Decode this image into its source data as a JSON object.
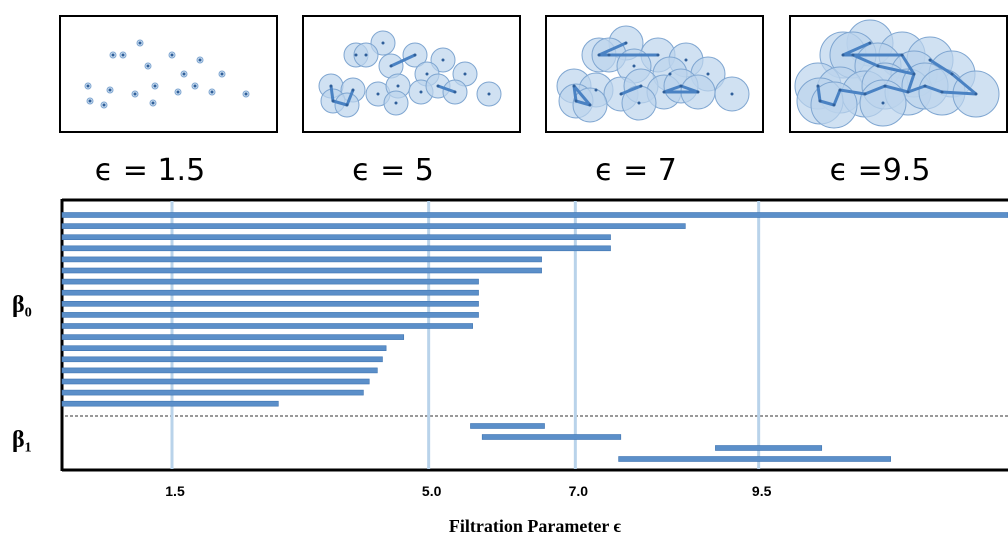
{
  "chart_data": {
    "type": "barcode",
    "x_label": "Filtration Parameter ϵ",
    "xlim": [
      0,
      12.9
    ],
    "xticks": [
      1.5,
      {
        "value": 5,
        "label": "5.0"
      },
      {
        "value": 7,
        "label": "7.0"
      },
      9.5
    ],
    "grid": true,
    "grid_color": "#b9d3ea",
    "snapshots": [
      "ϵ = 1.5",
      "ϵ = 5",
      "ϵ = 7",
      "ϵ =9.5"
    ],
    "series": [
      {
        "name": "β₀",
        "color": "#5b8fc9",
        "starts": [
          0,
          0,
          0,
          0,
          0,
          0,
          0,
          0,
          0,
          0,
          0,
          0,
          0,
          0,
          0,
          0,
          0,
          0
        ],
        "ends": [
          12.9,
          8.5,
          7.48,
          7.48,
          6.54,
          6.54,
          5.68,
          5.68,
          5.68,
          5.68,
          5.6,
          4.66,
          4.42,
          4.37,
          4.3,
          4.19,
          4.11,
          2.95
        ]
      },
      {
        "name": "β₁",
        "color": "#5b8fc9",
        "starts": [
          5.57,
          5.73,
          8.91,
          7.59
        ],
        "ends": [
          6.58,
          7.62,
          10.36,
          11.3
        ]
      }
    ]
  }
}
